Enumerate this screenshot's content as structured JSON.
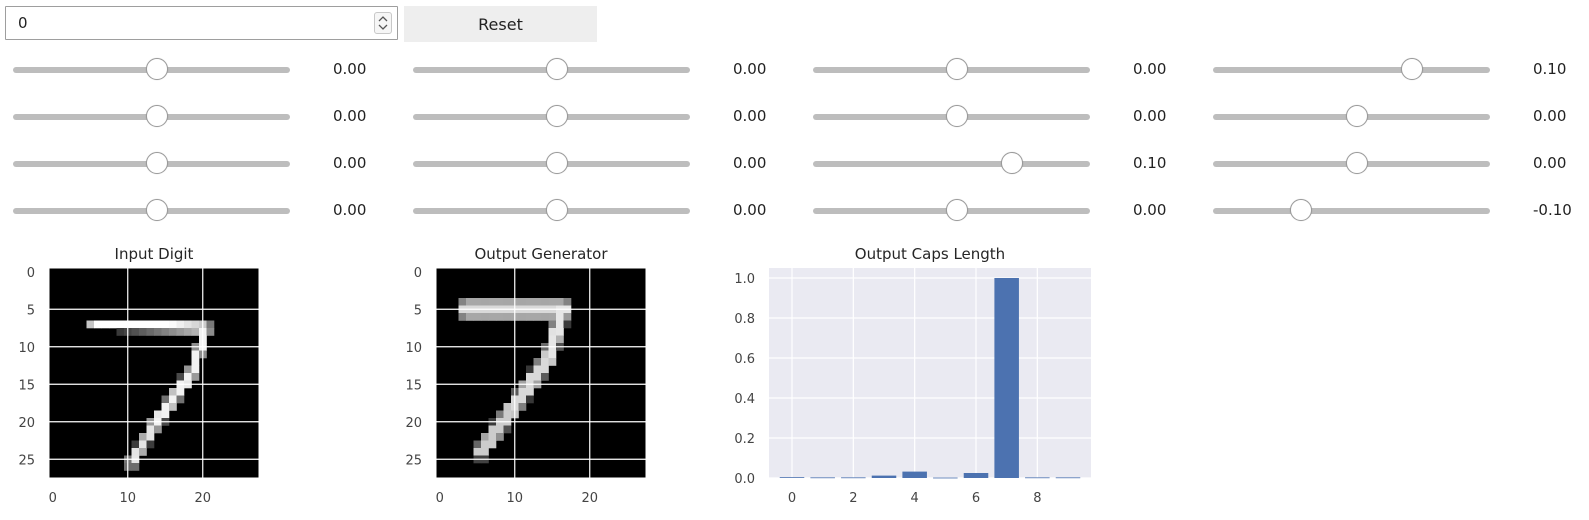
{
  "controls": {
    "number_value": "0",
    "reset_label": "Reset"
  },
  "sliders": [
    [
      {
        "value": 0.0,
        "readout": "0.00"
      },
      {
        "value": 0.0,
        "readout": "0.00"
      },
      {
        "value": 0.0,
        "readout": "0.00"
      },
      {
        "value": 0.1,
        "readout": "0.10"
      }
    ],
    [
      {
        "value": 0.0,
        "readout": "0.00"
      },
      {
        "value": 0.0,
        "readout": "0.00"
      },
      {
        "value": 0.0,
        "readout": "0.00"
      },
      {
        "value": 0.0,
        "readout": "0.00"
      }
    ],
    [
      {
        "value": 0.0,
        "readout": "0.00"
      },
      {
        "value": 0.0,
        "readout": "0.00"
      },
      {
        "value": 0.1,
        "readout": "0.10"
      },
      {
        "value": 0.0,
        "readout": "0.00"
      }
    ],
    [
      {
        "value": 0.0,
        "readout": "0.00"
      },
      {
        "value": 0.0,
        "readout": "0.00"
      },
      {
        "value": 0.0,
        "readout": "0.00"
      },
      {
        "value": -0.1,
        "readout": "-0.10"
      }
    ]
  ],
  "slider_range": [
    -0.25,
    0.25
  ],
  "chart_data": [
    {
      "type": "heatmap",
      "title": "Input Digit",
      "xticks": [
        "0",
        "10",
        "20"
      ],
      "yticks": [
        "0",
        "5",
        "10",
        "15",
        "20",
        "25"
      ],
      "grid": true,
      "colormap": "gray"
    },
    {
      "type": "heatmap",
      "title": "Output Generator",
      "xticks": [
        "0",
        "10",
        "20"
      ],
      "yticks": [
        "0",
        "5",
        "10",
        "15",
        "20",
        "25"
      ],
      "grid": true,
      "colormap": "gray"
    },
    {
      "type": "bar",
      "title": "Output Caps Length",
      "categories": [
        0,
        1,
        2,
        3,
        4,
        5,
        6,
        7,
        8,
        9
      ],
      "values": [
        0.004,
        0.003,
        0.003,
        0.012,
        0.032,
        0.002,
        0.025,
        1.0,
        0.003,
        0.003
      ],
      "xticks": [
        "0",
        "2",
        "4",
        "6",
        "8"
      ],
      "yticks": [
        "0.0",
        "0.2",
        "0.4",
        "0.6",
        "0.8",
        "1.0"
      ],
      "ylim": [
        0,
        1.05
      ],
      "grid": true,
      "bar_color": "#4c72b0"
    }
  ]
}
